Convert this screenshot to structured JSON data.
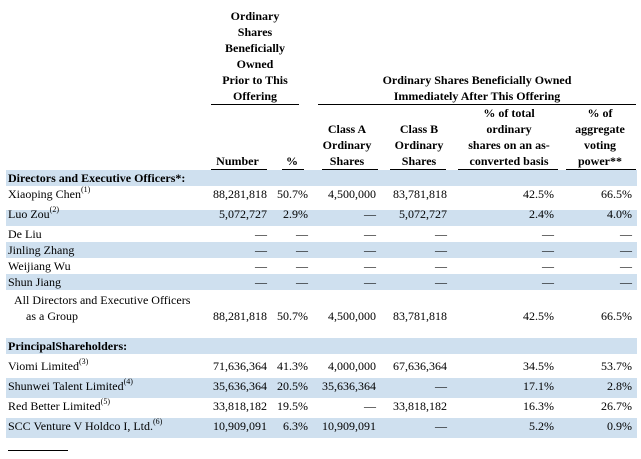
{
  "headers": {
    "prior_group": [
      "Ordinary",
      "Shares",
      "Beneficially",
      "Owned",
      "Prior to This",
      "Offering"
    ],
    "after_group": [
      "Ordinary Shares Beneficially Owned",
      "Immediately After This Offering"
    ],
    "number": "Number",
    "pct": "%",
    "class_a": [
      "Class A",
      "Ordinary",
      "Shares"
    ],
    "class_b": [
      "Class B",
      "Ordinary",
      "Shares"
    ],
    "pct_total": [
      "% of total",
      "ordinary",
      "shares on an as-",
      "converted basis"
    ],
    "pct_vote": [
      "% of",
      "aggregate",
      "voting",
      "power**"
    ]
  },
  "sections": {
    "directors": "Directors and Executive Officers*:",
    "principal": "PrincipalShareholders:"
  },
  "rows": [
    {
      "name": "Xiaoping Chen",
      "note": "(1)",
      "number": "88,281,818",
      "pct": "50.7%",
      "class_a": "4,500,000",
      "class_b": "83,781,818",
      "pct_total": "42.5%",
      "pct_vote": "66.5%"
    },
    {
      "name": "Luo Zou",
      "note": "(2)",
      "number": "5,072,727",
      "pct": "2.9%",
      "class_a": "—",
      "class_b": "5,072,727",
      "pct_total": "2.4%",
      "pct_vote": "4.0%"
    },
    {
      "name": "De Liu",
      "note": "",
      "number": "—",
      "pct": "—",
      "class_a": "—",
      "class_b": "—",
      "pct_total": "—",
      "pct_vote": "—"
    },
    {
      "name": "Jinling Zhang",
      "note": "",
      "number": "—",
      "pct": "—",
      "class_a": "—",
      "class_b": "—",
      "pct_total": "—",
      "pct_vote": "—"
    },
    {
      "name": "Weijiang Wu",
      "note": "",
      "number": "—",
      "pct": "—",
      "class_a": "—",
      "class_b": "—",
      "pct_total": "—",
      "pct_vote": "—"
    },
    {
      "name": "Shun Jiang",
      "note": "",
      "number": "—",
      "pct": "—",
      "class_a": "—",
      "class_b": "—",
      "pct_total": "—",
      "pct_vote": "—"
    },
    {
      "name": "All Directors and Executive Officers",
      "name2": "as a Group",
      "note": "",
      "number": "88,281,818",
      "pct": "50.7%",
      "class_a": "4,500,000",
      "class_b": "83,781,818",
      "pct_total": "42.5%",
      "pct_vote": "66.5%"
    },
    {
      "name": "Viomi Limited",
      "note": "(3)",
      "number": "71,636,364",
      "pct": "41.3%",
      "class_a": "4,000,000",
      "class_b": "67,636,364",
      "pct_total": "34.5%",
      "pct_vote": "53.7%"
    },
    {
      "name": "Shunwei Talent Limited",
      "note": "(4)",
      "number": "35,636,364",
      "pct": "20.5%",
      "class_a": "35,636,364",
      "class_b": "—",
      "pct_total": "17.1%",
      "pct_vote": "2.8%"
    },
    {
      "name": "Red Better Limited",
      "note": "(5)",
      "number": "33,818,182",
      "pct": "19.5%",
      "class_a": "—",
      "class_b": "33,818,182",
      "pct_total": "16.3%",
      "pct_vote": "26.7%"
    },
    {
      "name": "SCC Venture V Holdco I, Ltd.",
      "note": "(6)",
      "number": "10,909,091",
      "pct": "6.3%",
      "class_a": "10,909,091",
      "class_b": "—",
      "pct_total": "5.2%",
      "pct_vote": "0.9%"
    }
  ]
}
